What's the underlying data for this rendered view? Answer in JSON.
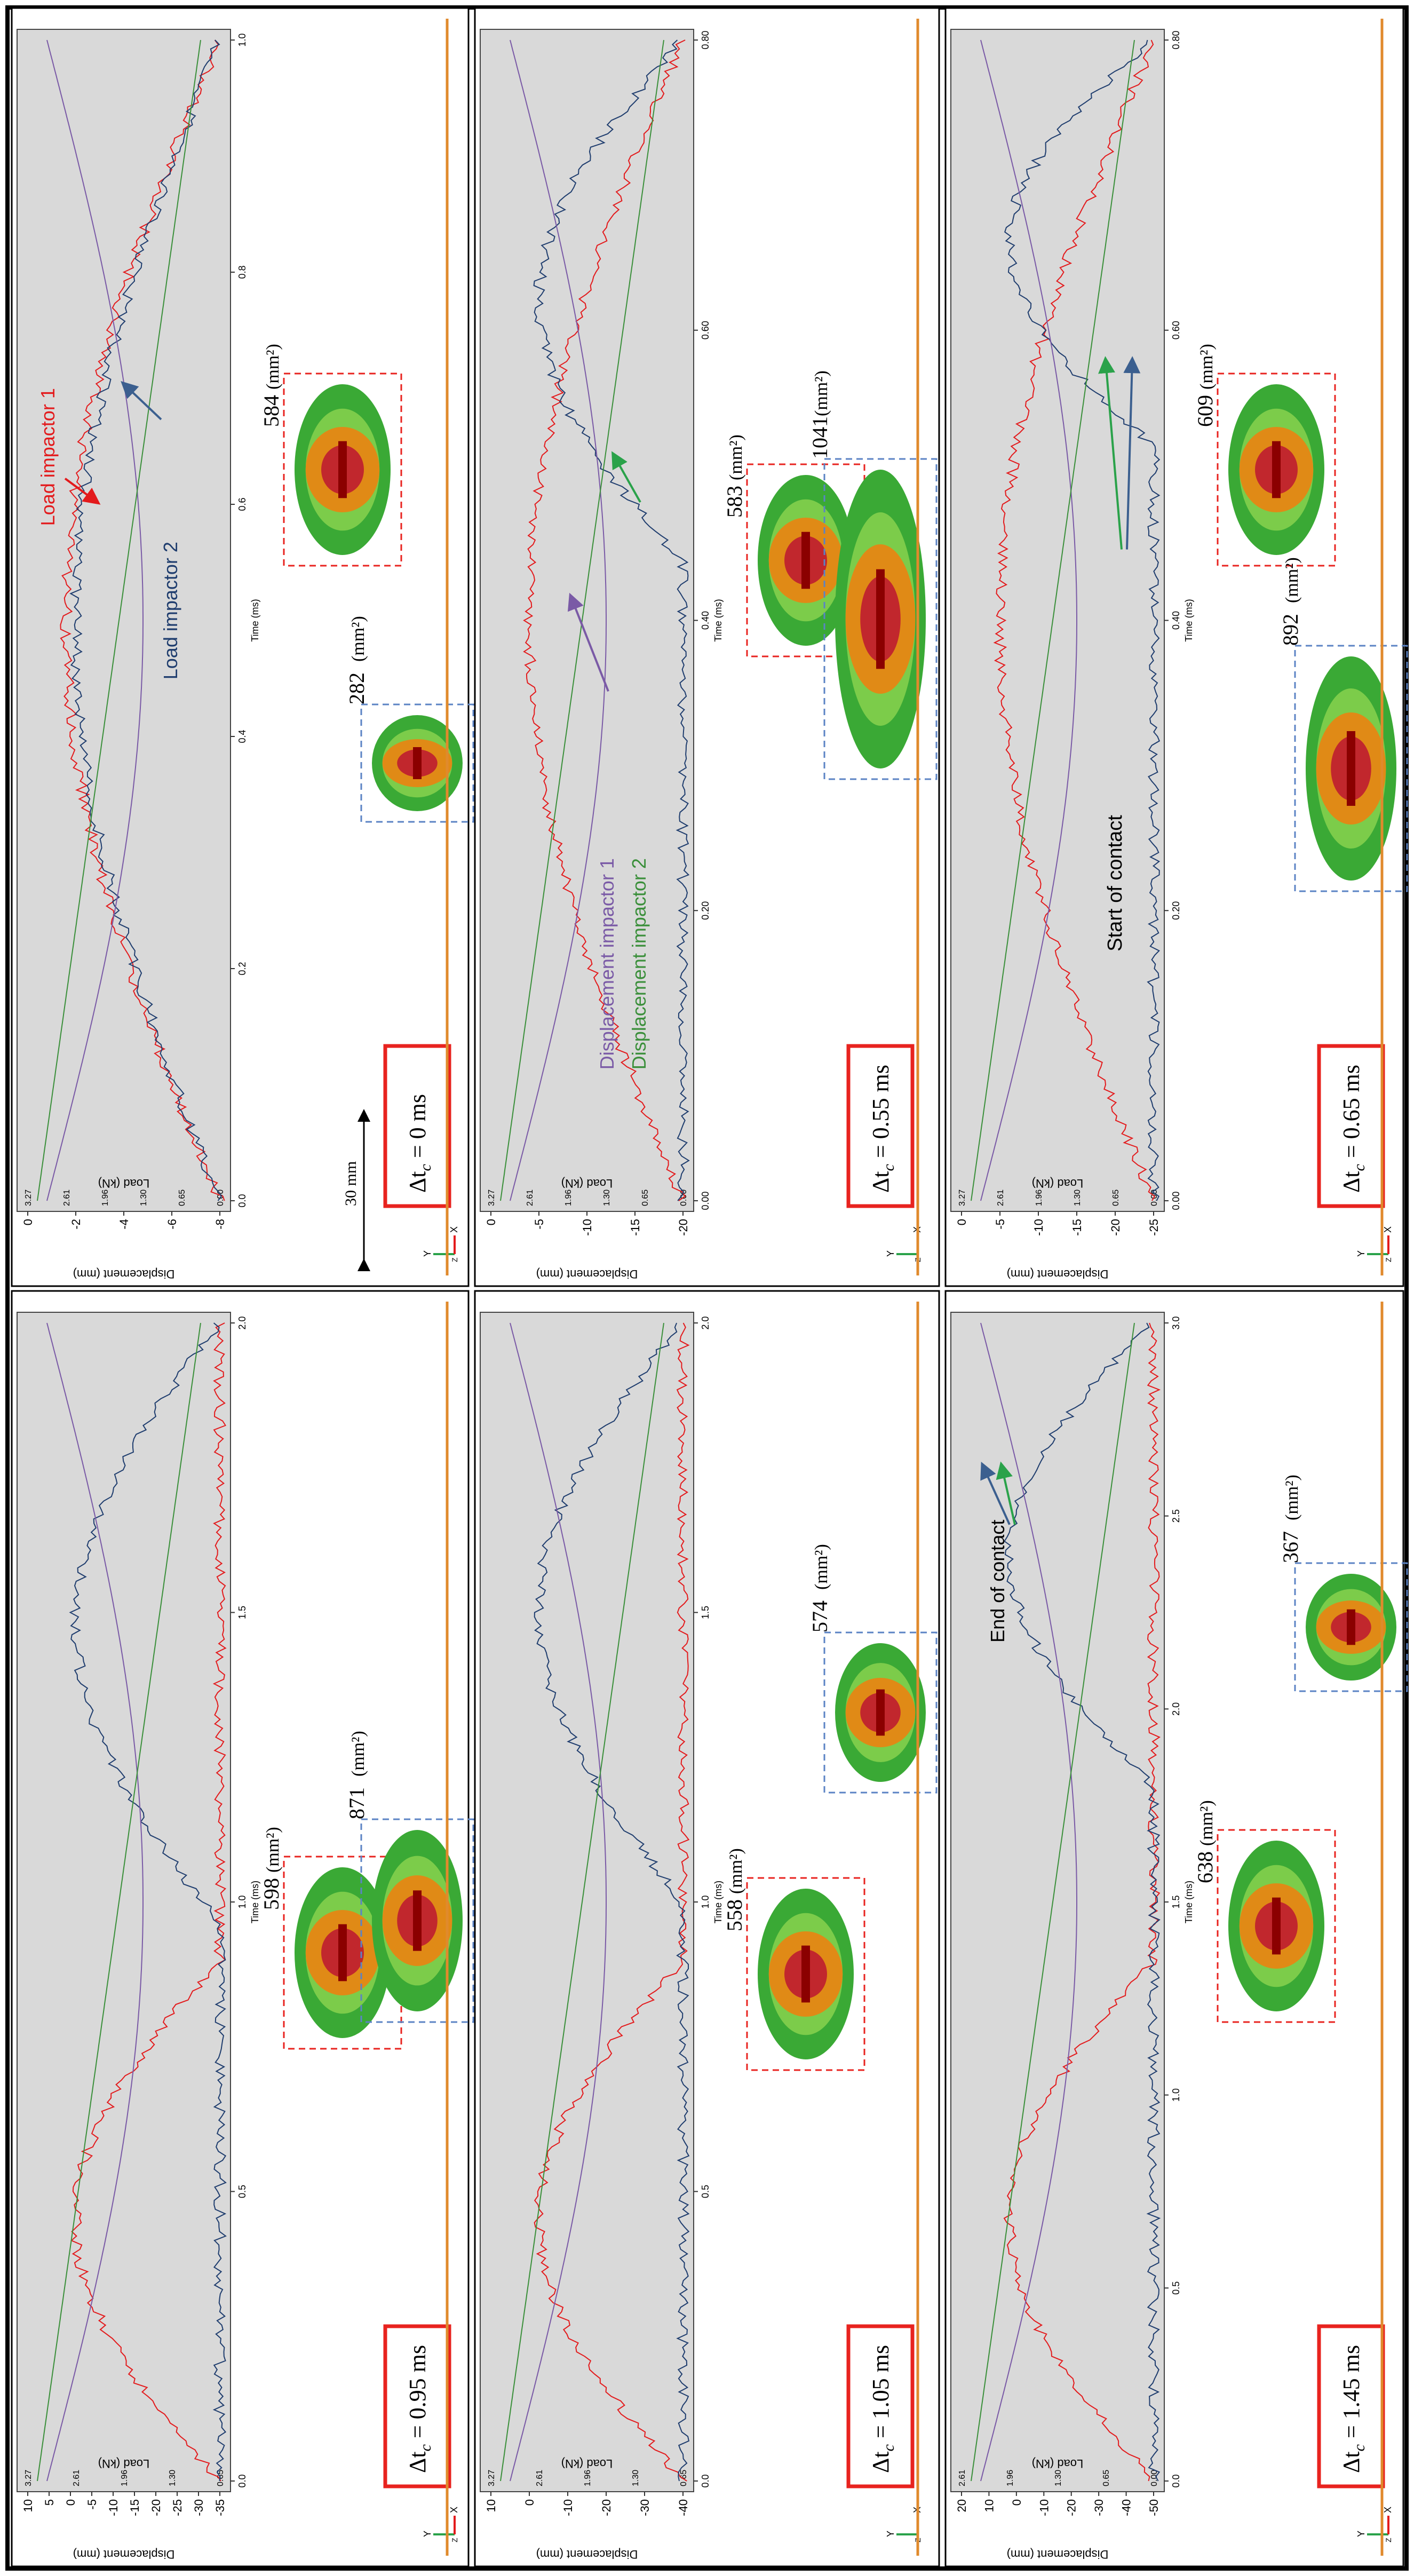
{
  "figure": {
    "scale_bar_label": "30 mm",
    "axis_labels": {
      "displacement": "Displacement (mm)",
      "load": "Load (kN)",
      "time": "Time (ms)"
    },
    "triad": {
      "y": "Y",
      "z": "Z",
      "x": "X"
    },
    "area_unit": "(mm²)",
    "colors": {
      "load1": "#e31a1c",
      "load2": "#1f3d6e",
      "disp1": "#7a5aa6",
      "disp2": "#3a8f3a",
      "plot_bg": "#d9d9d9",
      "dashed_red": "#e8231f",
      "dashed_blue": "#5b83c4",
      "plate_line": "#e08a2c"
    }
  },
  "panels": [
    {
      "id": "p1",
      "dt_prefix": "Δt",
      "dt_sub": "c",
      "dt_value": "= 0 ms",
      "load_ticks": [
        "3.27",
        "2.61",
        "1.96",
        "1.30",
        "0.65",
        "0.00"
      ],
      "disp_ticks": [
        "0",
        "-2",
        "-4",
        "-6",
        "-8"
      ],
      "time_ticks": [
        "0.0",
        "0.2",
        "0.4",
        "0.6",
        "0.8",
        "1.0"
      ],
      "annotations": [
        "Load impactor 1",
        "Load impactor 2"
      ],
      "areas": {
        "red": "584",
        "blue": "282"
      }
    },
    {
      "id": "p2",
      "dt_prefix": "Δt",
      "dt_sub": "c",
      "dt_value": "= 0.55 ms",
      "load_ticks": [
        "3.27",
        "2.61",
        "1.96",
        "1.30",
        "0.65",
        "0.00"
      ],
      "disp_ticks": [
        "0",
        "-5",
        "-10",
        "-15",
        "-20"
      ],
      "time_ticks": [
        "0.00",
        "0.20",
        "0.40",
        "0.60",
        "0.80"
      ],
      "annotations": [
        "Displacement impactor 1",
        "Displacement impactor 2"
      ],
      "areas": {
        "red": "583",
        "blue": "1041"
      }
    },
    {
      "id": "p3",
      "dt_prefix": "Δt",
      "dt_sub": "c",
      "dt_value": "= 0.65 ms",
      "load_ticks": [
        "3.27",
        "2.61",
        "1.96",
        "1.30",
        "0.65",
        "0.00"
      ],
      "disp_ticks": [
        "0",
        "-5",
        "-10",
        "-15",
        "-20",
        "-25"
      ],
      "time_ticks": [
        "0.00",
        "0.20",
        "0.40",
        "0.60",
        "0.80"
      ],
      "annotations": [
        "Start of contact"
      ],
      "areas": {
        "red": "609",
        "blue": "892"
      }
    },
    {
      "id": "p4",
      "dt_prefix": "Δt",
      "dt_sub": "c",
      "dt_value": "= 0.95 ms",
      "load_ticks": [
        "3.27",
        "2.61",
        "1.96",
        "1.30",
        "0.65"
      ],
      "disp_ticks": [
        "10",
        "5",
        "0",
        "-5",
        "-10",
        "-15",
        "-20",
        "-25",
        "-30",
        "-35"
      ],
      "time_ticks": [
        "0.0",
        "0.5",
        "1.0",
        "1.5",
        "2.0"
      ],
      "annotations": [],
      "areas": {
        "red": "598",
        "blue": "871"
      }
    },
    {
      "id": "p5",
      "dt_prefix": "Δt",
      "dt_sub": "c",
      "dt_value": "= 1.05 ms",
      "load_ticks": [
        "3.27",
        "2.61",
        "1.96",
        "1.30",
        "0.65"
      ],
      "disp_ticks": [
        "10",
        "0",
        "-10",
        "-20",
        "-30",
        "-40"
      ],
      "time_ticks": [
        "0.0",
        "0.5",
        "1.0",
        "1.5",
        "2.0"
      ],
      "annotations": [],
      "areas": {
        "red": "558",
        "blue": "574"
      }
    },
    {
      "id": "p6",
      "dt_prefix": "Δt",
      "dt_sub": "c",
      "dt_value": "= 1.45 ms",
      "load_ticks": [
        "2.61",
        "1.96",
        "1.30",
        "0.65",
        "0.00"
      ],
      "disp_ticks": [
        "20",
        "10",
        "0",
        "-10",
        "-20",
        "-30",
        "-40",
        "-50"
      ],
      "time_ticks": [
        "0.0",
        "0.5",
        "1.0",
        "1.5",
        "2.0",
        "2.5",
        "3.0"
      ],
      "annotations": [
        "End of contact"
      ],
      "areas": {
        "red": "638",
        "blue": "367"
      }
    }
  ]
}
